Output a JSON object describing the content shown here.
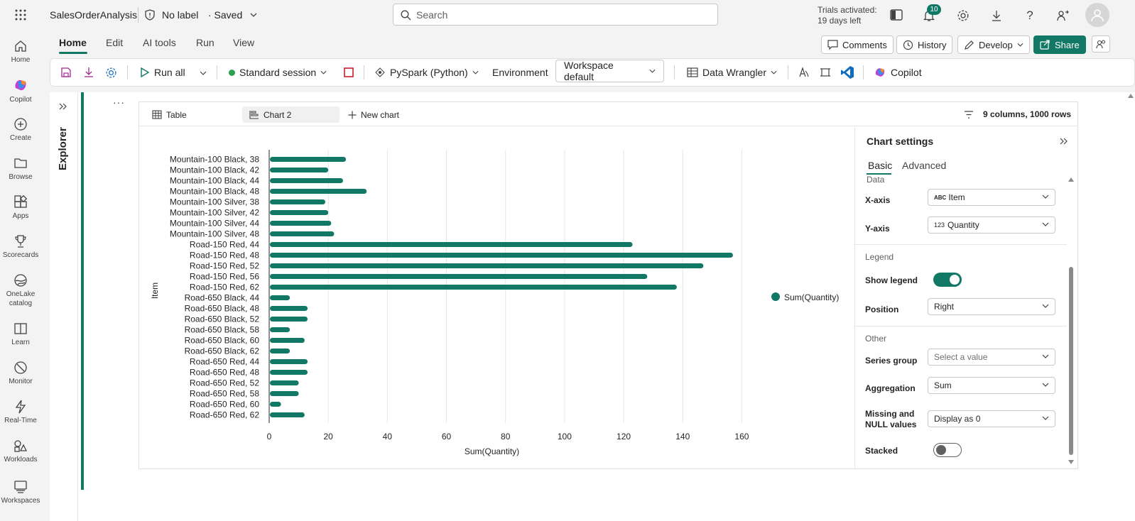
{
  "app": {
    "name": "SalesOrderAnalysis",
    "label_status": "No label",
    "save_status": "· Saved",
    "search_placeholder": "Search",
    "trial_line1": "Trials activated:",
    "trial_line2": "19 days left",
    "notification_count": "10",
    "avatar_initial": ""
  },
  "rail": [
    {
      "label": "Home",
      "icon": "home-icon"
    },
    {
      "label": "Copilot",
      "icon": "copilot-icon"
    },
    {
      "label": "Create",
      "icon": "create-icon"
    },
    {
      "label": "Browse",
      "icon": "folder-icon"
    },
    {
      "label": "Apps",
      "icon": "apps-icon"
    },
    {
      "label": "Scorecards",
      "icon": "trophy-icon"
    },
    {
      "label": "OneLake",
      "label2": "catalog",
      "icon": "onelake-icon"
    },
    {
      "label": "Learn",
      "icon": "book-icon"
    },
    {
      "label": "Monitor",
      "icon": "monitor-icon"
    },
    {
      "label": "Real-Time",
      "icon": "lightning-icon"
    },
    {
      "label": "Workloads",
      "icon": "workloads-icon"
    },
    {
      "label": "Workspaces",
      "icon": "workspaces-icon"
    }
  ],
  "menu": {
    "tabs": [
      "Home",
      "Edit",
      "AI tools",
      "Run",
      "View"
    ],
    "active": "Home",
    "comments": "Comments",
    "history": "History",
    "develop": "Develop",
    "share": "Share"
  },
  "ribbon": {
    "run_all": "Run all",
    "session": "Standard session",
    "language": "PySpark (Python)",
    "environment_label": "Environment",
    "environment_value": "Workspace default",
    "data_wrangler": "Data Wrangler",
    "copilot": "Copilot"
  },
  "explorer": {
    "label": "Explorer"
  },
  "cell": {
    "more": "···"
  },
  "chart_tabs": {
    "table": "Table",
    "chart": "Chart 2",
    "new_chart": "New chart",
    "summary": "9 columns, 1000 rows"
  },
  "settings": {
    "title": "Chart settings",
    "tab_basic": "Basic",
    "tab_advanced": "Advanced",
    "section_data": "Data",
    "xaxis_label": "X-axis",
    "xaxis_type": "ABC",
    "xaxis_value": "Item",
    "yaxis_label": "Y-axis",
    "yaxis_type": "123",
    "yaxis_value": "Quantity",
    "section_legend": "Legend",
    "show_legend_label": "Show legend",
    "show_legend": true,
    "position_label": "Position",
    "position_value": "Right",
    "section_other": "Other",
    "series_group_label": "Series group",
    "series_group_placeholder": "Select a value",
    "aggregation_label": "Aggregation",
    "aggregation_value": "Sum",
    "missing_label1": "Missing and",
    "missing_label2": "NULL values",
    "missing_value": "Display as 0",
    "stacked_label": "Stacked",
    "stacked": false
  },
  "colors": {
    "accent": "#117865",
    "bar": "#117865"
  },
  "chart_data": {
    "type": "bar",
    "orientation": "horizontal",
    "title": "",
    "xlabel": "Sum(Quantity)",
    "ylabel": "Item",
    "xlim": [
      0,
      170
    ],
    "xticks": [
      0,
      20,
      40,
      60,
      80,
      100,
      120,
      140,
      160
    ],
    "grid": true,
    "legend": {
      "position": "right"
    },
    "categories": [
      "Mountain-100 Black, 38",
      "Mountain-100 Black, 42",
      "Mountain-100 Black, 44",
      "Mountain-100 Black, 48",
      "Mountain-100 Silver, 38",
      "Mountain-100 Silver, 42",
      "Mountain-100 Silver, 44",
      "Mountain-100 Silver, 48",
      "Road-150 Red, 44",
      "Road-150 Red, 48",
      "Road-150 Red, 52",
      "Road-150 Red, 56",
      "Road-150 Red, 62",
      "Road-650 Black, 44",
      "Road-650 Black, 48",
      "Road-650 Black, 52",
      "Road-650 Black, 58",
      "Road-650 Black, 60",
      "Road-650 Black, 62",
      "Road-650 Red, 44",
      "Road-650 Red, 48",
      "Road-650 Red, 52",
      "Road-650 Red, 58",
      "Road-650 Red, 60",
      "Road-650 Red, 62"
    ],
    "series": [
      {
        "name": "Sum(Quantity)",
        "color": "#117865",
        "values": [
          26,
          20,
          25,
          33,
          19,
          20,
          21,
          22,
          123,
          157,
          147,
          128,
          138,
          7,
          13,
          13,
          7,
          12,
          7,
          13,
          13,
          10,
          10,
          4,
          12
        ]
      }
    ]
  }
}
